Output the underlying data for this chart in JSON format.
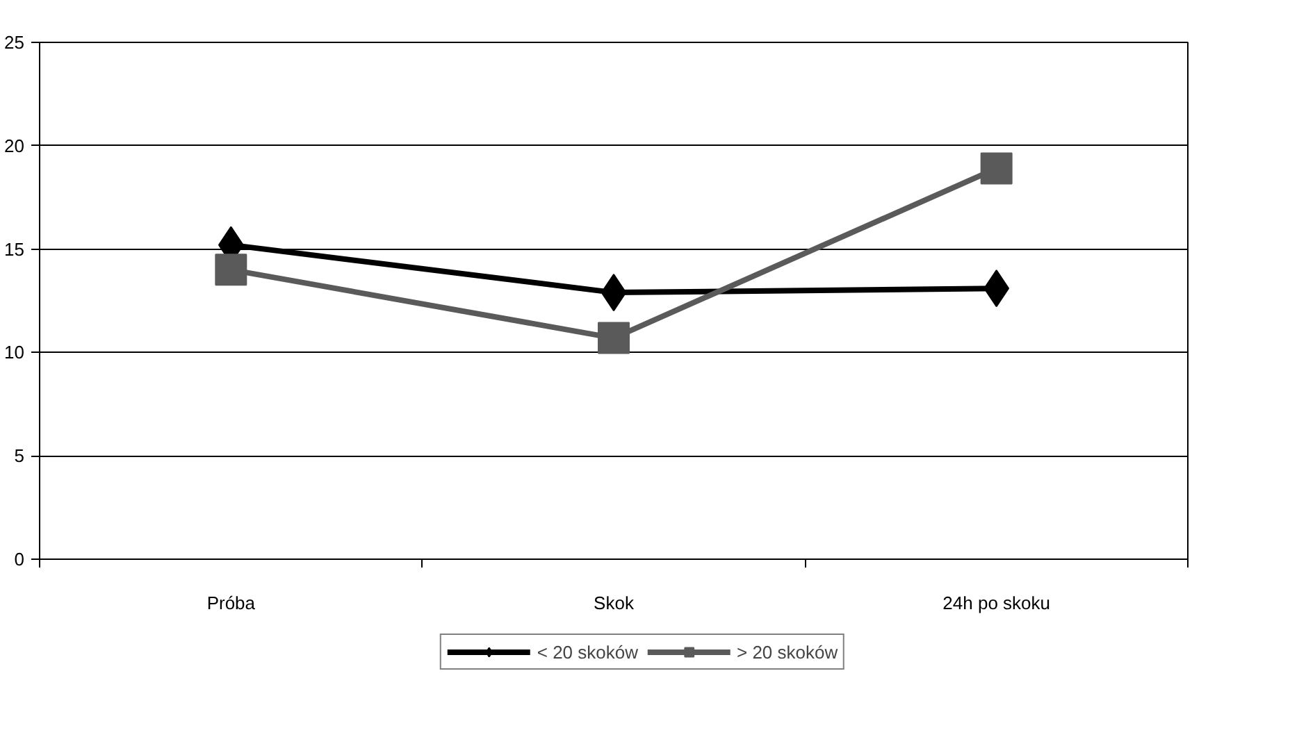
{
  "chart_data": {
    "type": "line",
    "categories": [
      "Próba",
      "Skok",
      "24h po skoku"
    ],
    "series": [
      {
        "name": "< 20 skoków",
        "color": "#000000",
        "marker": "diamond",
        "values": [
          15.2,
          12.9,
          13.1
        ]
      },
      {
        "name": "> 20 skoków",
        "color": "#5a5a5a",
        "marker": "square",
        "values": [
          14.0,
          10.7,
          18.9
        ]
      }
    ],
    "ylim": [
      0,
      25
    ],
    "yticks": [
      0,
      5,
      10,
      15,
      20,
      25
    ],
    "grid": "y",
    "legend": "bottom",
    "line_style": "solid"
  }
}
